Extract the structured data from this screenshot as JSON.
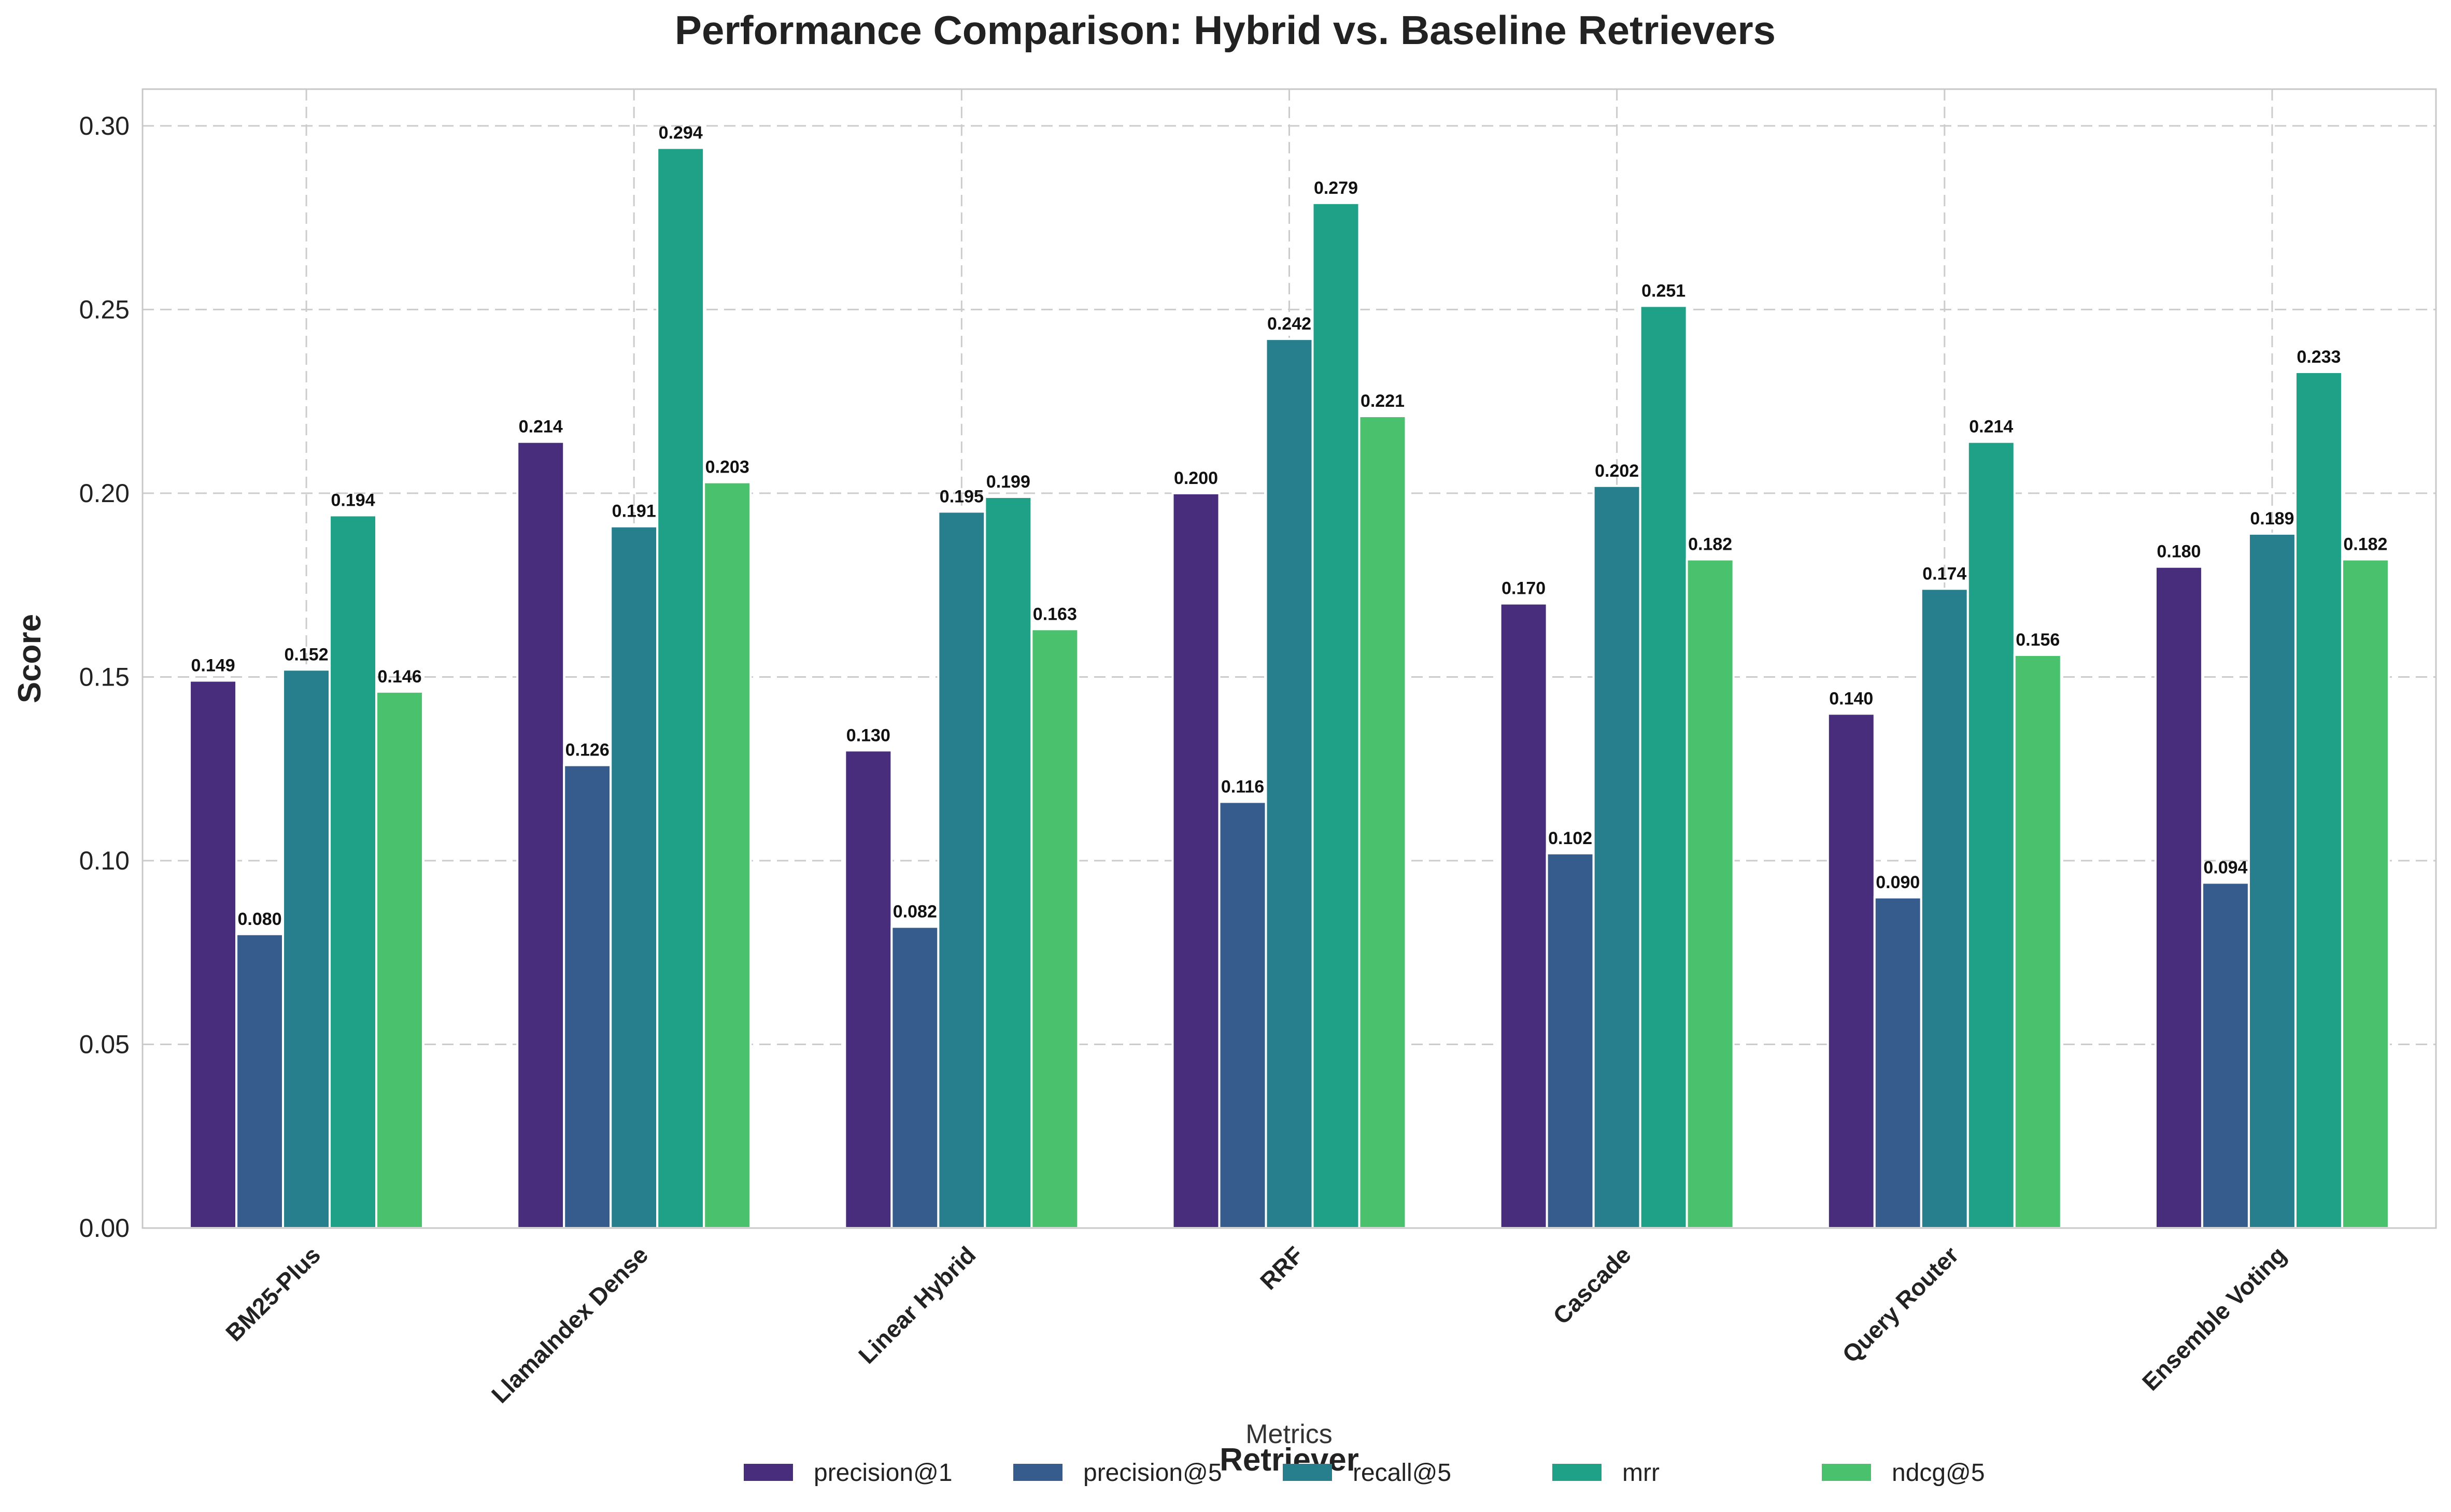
{
  "chart_data": {
    "type": "bar",
    "title": "Performance Comparison: Hybrid vs. Baseline Retrievers",
    "xlabel": "Retriever",
    "ylabel": "Score",
    "ylim": [
      0,
      0.31
    ],
    "yticks": [
      "0.00",
      "0.05",
      "0.10",
      "0.15",
      "0.20",
      "0.25",
      "0.30"
    ],
    "grid": true,
    "legend": {
      "title": "Metrics",
      "placement": "bottom-center"
    },
    "categories": [
      "BM25-Plus",
      "LlamaIndex Dense",
      "Linear Hybrid",
      "RRF",
      "Cascade",
      "Query Router",
      "Ensemble Voting"
    ],
    "series": [
      {
        "name": "precision@1",
        "color": "#472d7b",
        "values": [
          0.149,
          0.214,
          0.13,
          0.2,
          0.17,
          0.14,
          0.18
        ]
      },
      {
        "name": "precision@5",
        "color": "#365c8d",
        "values": [
          0.08,
          0.126,
          0.082,
          0.116,
          0.102,
          0.09,
          0.094
        ]
      },
      {
        "name": "recall@5",
        "color": "#277f8e",
        "values": [
          0.152,
          0.191,
          0.195,
          0.242,
          0.202,
          0.174,
          0.189
        ]
      },
      {
        "name": "mrr",
        "color": "#1fa187",
        "values": [
          0.194,
          0.294,
          0.199,
          0.279,
          0.251,
          0.214,
          0.233
        ]
      },
      {
        "name": "ndcg@5",
        "color": "#4ac16d",
        "values": [
          0.146,
          0.203,
          0.163,
          0.221,
          0.182,
          0.156,
          0.182
        ]
      }
    ]
  }
}
